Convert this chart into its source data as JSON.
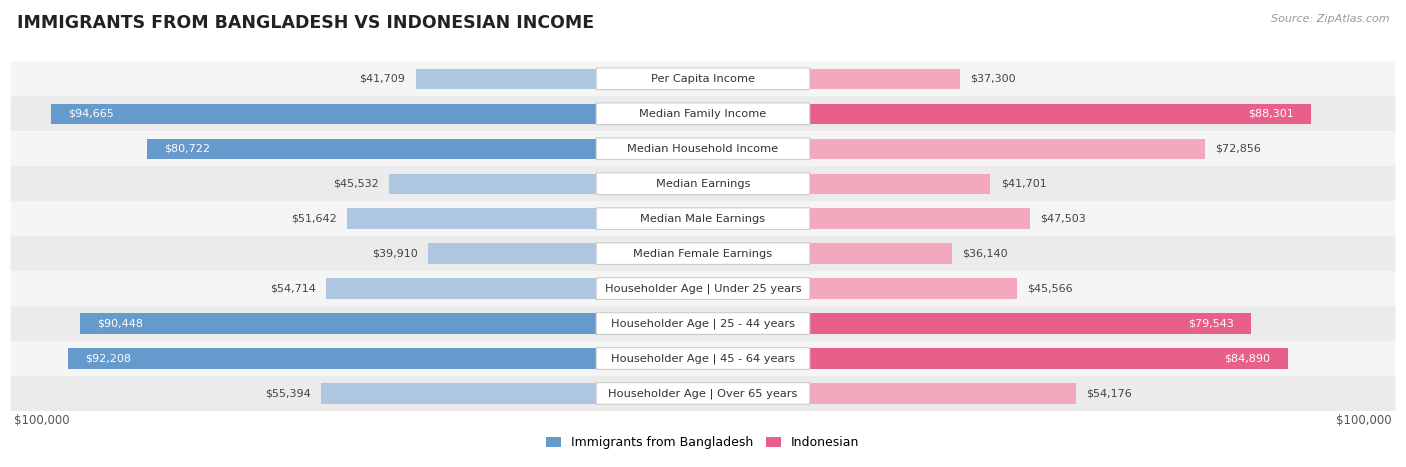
{
  "title": "IMMIGRANTS FROM BANGLADESH VS INDONESIAN INCOME",
  "source": "Source: ZipAtlas.com",
  "categories": [
    "Per Capita Income",
    "Median Family Income",
    "Median Household Income",
    "Median Earnings",
    "Median Male Earnings",
    "Median Female Earnings",
    "Householder Age | Under 25 years",
    "Householder Age | 25 - 44 years",
    "Householder Age | 45 - 64 years",
    "Householder Age | Over 65 years"
  ],
  "bangladesh_values": [
    41709,
    94665,
    80722,
    45532,
    51642,
    39910,
    54714,
    90448,
    92208,
    55394
  ],
  "indonesian_values": [
    37300,
    88301,
    72856,
    41701,
    47503,
    36140,
    45566,
    79543,
    84890,
    54176
  ],
  "max_value": 100000,
  "blue_full": "#6699cc",
  "blue_light": "#aec6e0",
  "pink_full": "#e8608a",
  "pink_light": "#f4a8be",
  "row_bg_light": "#f5f5f5",
  "row_bg_dark": "#ebebeb",
  "legend_label_bangladesh": "Immigrants from Bangladesh",
  "legend_label_indonesian": "Indonesian",
  "xlabel_left": "$100,000",
  "xlabel_right": "$100,000",
  "blue_thresh": 75000,
  "pink_thresh": 75000
}
